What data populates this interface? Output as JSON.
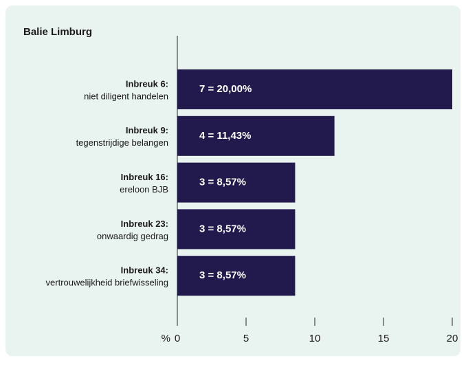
{
  "chart_data": {
    "type": "barh",
    "title": "Balie Limburg",
    "categories": [
      "Inbreuk 6:",
      "Inbreuk 9:",
      "Inbreuk 16:",
      "Inbreuk 23:",
      "Inbreuk 34:"
    ],
    "category_descriptions": [
      "niet diligent handelen",
      "tegenstrijdige belangen",
      "ereloon BJB",
      "onwaardig gedrag",
      "vertrouwelijkheid briefwisseling"
    ],
    "values": [
      20,
      11.43,
      8.57,
      8.57,
      8.57
    ],
    "value_labels": [
      "7 = 20,00%",
      "4 = 11,43%",
      "3 = 8,57%",
      "3 = 8,57%",
      "3 = 8,57%"
    ],
    "color": "#221a4c",
    "xlabel": "%",
    "xlim": [
      0,
      20
    ],
    "xticks": [
      0,
      5,
      10,
      15,
      20
    ],
    "grid": false
  }
}
